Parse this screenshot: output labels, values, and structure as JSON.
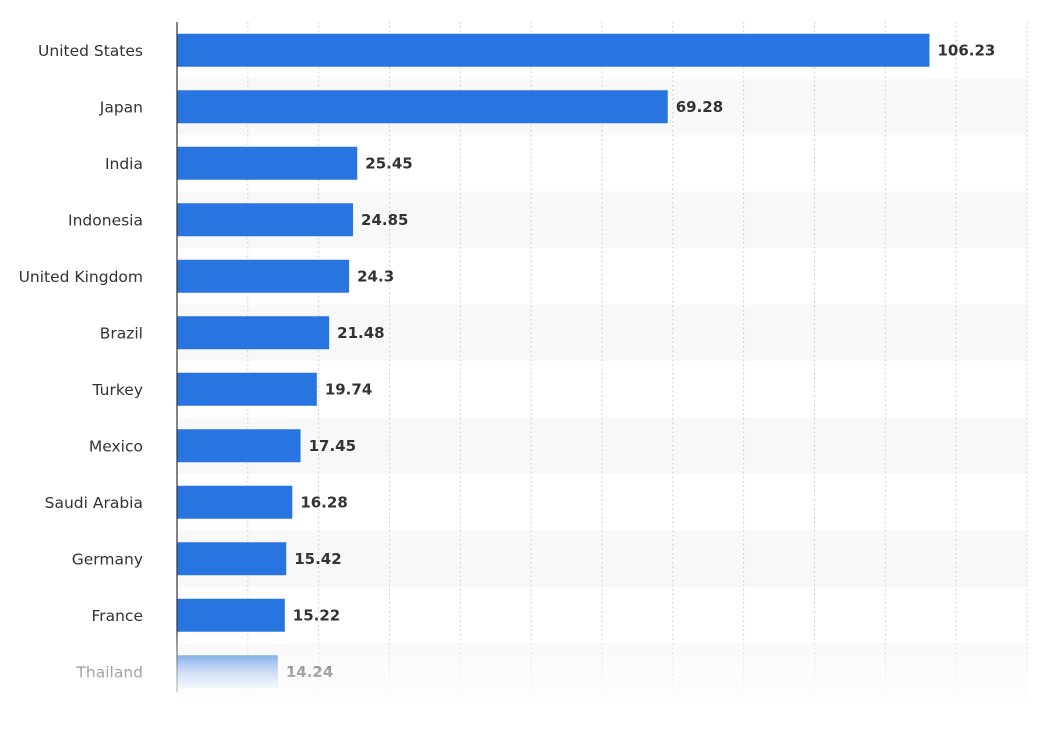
{
  "chart_data": {
    "type": "bar",
    "orientation": "horizontal",
    "categories": [
      "United States",
      "Japan",
      "India",
      "Indonesia",
      "United Kingdom",
      "Brazil",
      "Turkey",
      "Mexico",
      "Saudi Arabia",
      "Germany",
      "France",
      "Thailand"
    ],
    "values": [
      106.23,
      69.28,
      25.45,
      24.85,
      24.3,
      21.48,
      19.74,
      17.45,
      16.28,
      15.42,
      15.22,
      14.24
    ],
    "value_labels": [
      "106.23",
      "69.28",
      "25.45",
      "24.85",
      "24.3",
      "21.48",
      "19.74",
      "17.45",
      "16.28",
      "15.42",
      "15.22",
      "14.24"
    ],
    "title": "",
    "xlabel": "",
    "ylabel": "",
    "xlim": [
      0,
      120
    ],
    "grid": "vertical dotted",
    "legend": "none",
    "bar_color": "#2874e0",
    "band_color": "#f8f8f8"
  }
}
